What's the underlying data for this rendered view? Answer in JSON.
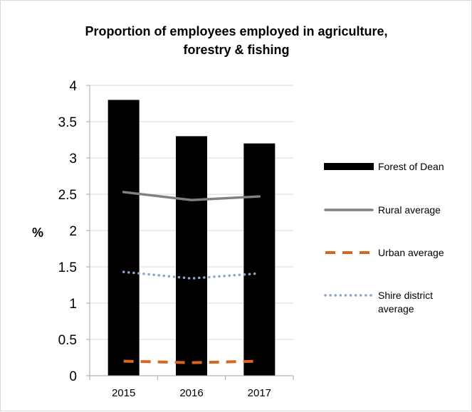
{
  "chart_data": {
    "type": "bar",
    "title_lines": [
      "Proportion of employees employed in agriculture,",
      "forestry & fishing"
    ],
    "xlabel": "",
    "ylabel": "%",
    "categories": [
      "2015",
      "2016",
      "2017"
    ],
    "ylim": [
      0,
      4
    ],
    "yticks": [
      "0",
      "0.5",
      "1",
      "1.5",
      "2",
      "2.5",
      "3",
      "3.5",
      "4"
    ],
    "grid": true,
    "legend_position": "right",
    "series": [
      {
        "name": "Forest of Dean",
        "kind": "bar",
        "style": "solid",
        "color": "#000000",
        "values": [
          3.8,
          3.3,
          3.2
        ]
      },
      {
        "name": "Rural average",
        "kind": "line",
        "style": "solid",
        "color": "#808080",
        "values": [
          2.53,
          2.42,
          2.47
        ]
      },
      {
        "name": "Urban average",
        "kind": "line",
        "style": "dashed",
        "color": "#d9661f",
        "values": [
          0.2,
          0.18,
          0.2
        ]
      },
      {
        "name": "Shire district average",
        "kind": "line",
        "style": "dotted",
        "color": "#8ea4c8",
        "values": [
          1.43,
          1.34,
          1.41
        ]
      }
    ],
    "legend_lines": [
      [
        "Forest of Dean"
      ],
      [
        "Rural average"
      ],
      [
        "Urban average"
      ],
      [
        "Shire district",
        "average"
      ]
    ]
  }
}
